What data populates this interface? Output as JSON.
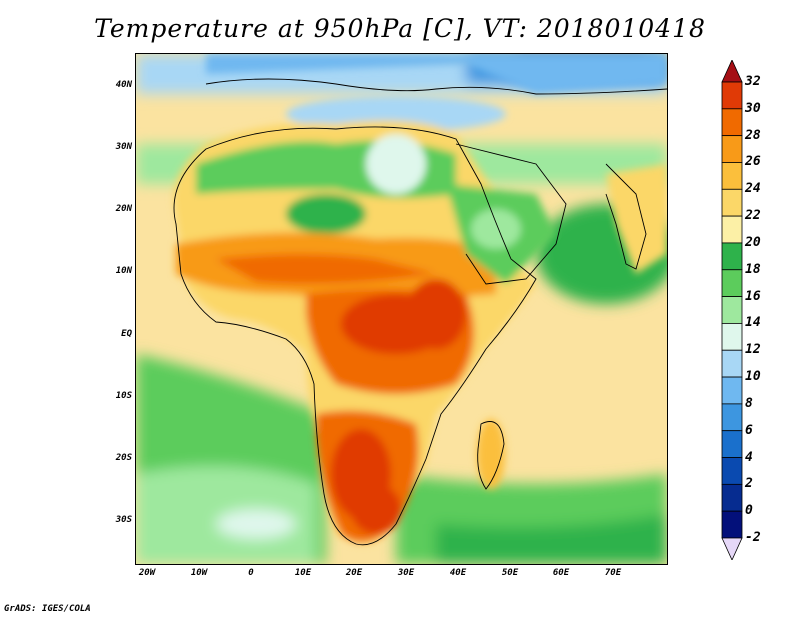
{
  "title": "Temperature at 950hPa [C], VT: 2018010418",
  "footer": "GrADS: IGES/COLA",
  "lat_labels": [
    "40N",
    "30N",
    "20N",
    "10N",
    "EQ",
    "10S",
    "20S",
    "30S"
  ],
  "lon_labels": [
    "20W",
    "10W",
    "0",
    "10E",
    "20E",
    "30E",
    "40E",
    "50E",
    "60E",
    "70E"
  ],
  "colorbar": {
    "levels": [
      "32",
      "30",
      "28",
      "26",
      "24",
      "22",
      "20",
      "18",
      "16",
      "14",
      "12",
      "10",
      "8",
      "6",
      "4",
      "2",
      "0",
      "-2"
    ],
    "colors": [
      "#a50f15",
      "#e03a06",
      "#f06a00",
      "#f89a18",
      "#fbbf3c",
      "#fbd768",
      "#fcf0a6",
      "#2eb24b",
      "#5ccc5c",
      "#9ee89e",
      "#dff7ec",
      "#a8d7f5",
      "#6fb8f0",
      "#3d96e0",
      "#1a70cc",
      "#0a4ab0",
      "#062c90",
      "#03107a",
      "#e6d8f8"
    ]
  },
  "colors": {
    "ocean_warm": "#fbe3a0",
    "ocean_cool": "#5ccc5c",
    "land_hot": "#e03a06",
    "mediterranean": "#1a70cc"
  }
}
